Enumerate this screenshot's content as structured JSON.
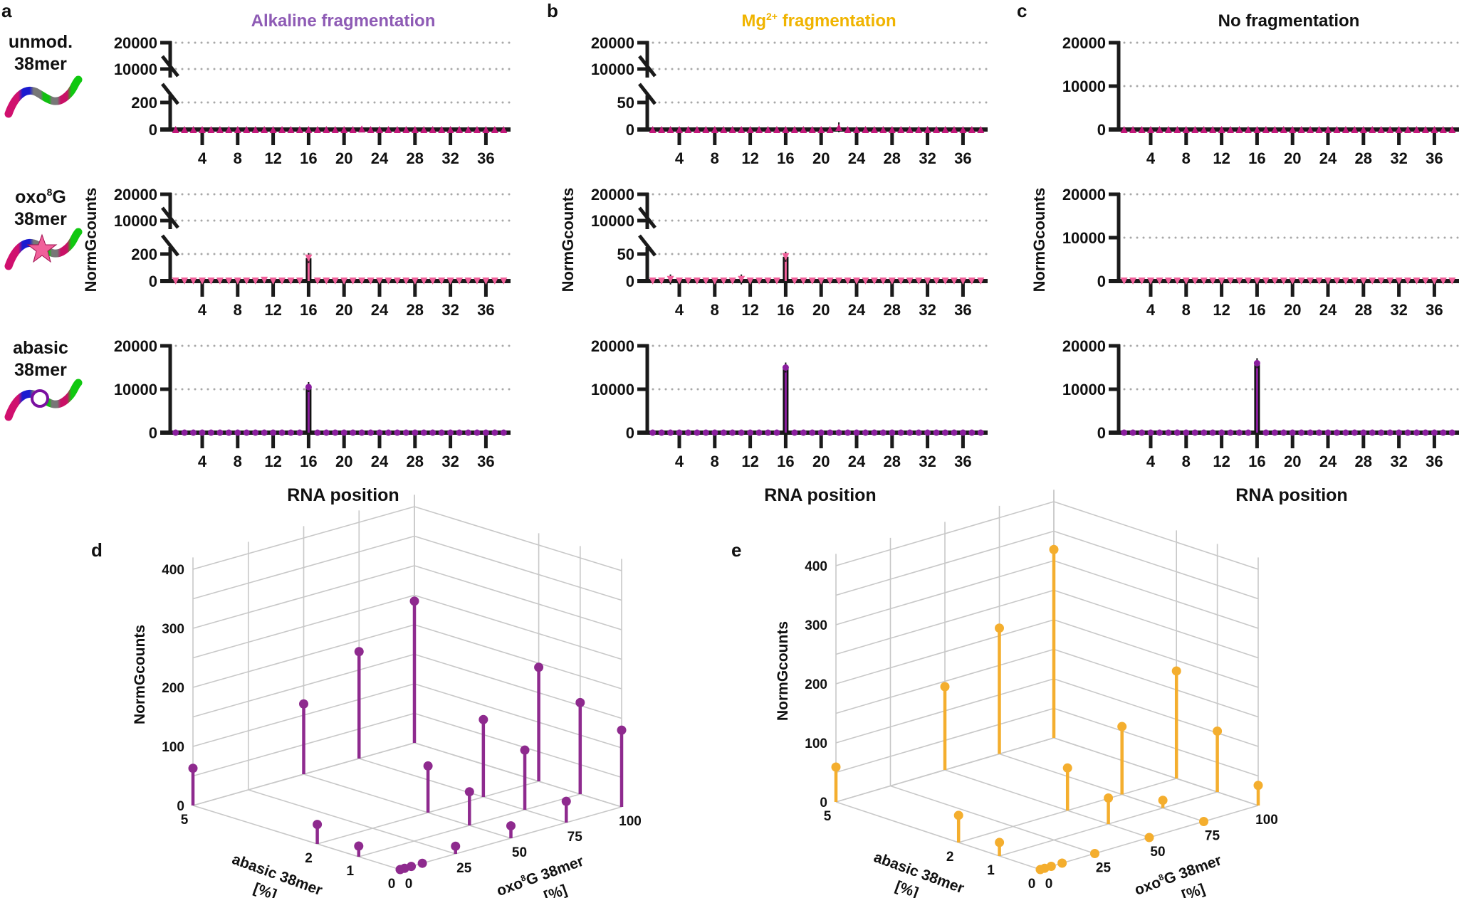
{
  "panel_labels": [
    "a",
    "b",
    "c",
    "d",
    "e"
  ],
  "panels": [
    {
      "id": "a",
      "title": "Alkaline fragmentation",
      "title_color": "#8e5bb5"
    },
    {
      "id": "b",
      "title_main": "Mg",
      "title_sup": "2+",
      "title_end": " fragmentation",
      "title_color": "#f0b400"
    },
    {
      "id": "c",
      "title": "No fragmentation",
      "title_color": "#111111"
    }
  ],
  "rows": [
    {
      "line1": "unmod.",
      "line2": "38mer",
      "icon": "rna-unmodified-icon"
    },
    {
      "line1_main": "oxo",
      "line1_sup": "8",
      "line1_end": "G",
      "line2": "38mer",
      "icon": "rna-oxo8g-star-icon"
    },
    {
      "line1": "abasic",
      "line2": "38mer",
      "icon": "rna-abasic-circle-icon"
    }
  ],
  "colors": {
    "unmod_marker": "#c2187a",
    "oxo8g_marker": "#f0609a",
    "abasic_marker": "#8a1e9e",
    "panel_d": "#8e2a8e",
    "panel_e": "#f4ae2e",
    "grid": "#c8c8c8"
  },
  "chart_data": [
    {
      "type": "bar",
      "panel": "a",
      "row": 0,
      "n_positions": 38,
      "x_ticks": [
        "4",
        "8",
        "12",
        "16",
        "20",
        "24",
        "28",
        "32",
        "36"
      ],
      "y_axis": {
        "broken": true,
        "lower_max": 200,
        "tick_labels": [
          "0",
          "200",
          "10000",
          "20000"
        ]
      },
      "values": {
        "22": 4
      },
      "marker": "triangle-up",
      "marker_color": "#c2187a"
    },
    {
      "type": "bar",
      "panel": "a",
      "row": 1,
      "n_positions": 38,
      "x_ticks": [
        "4",
        "8",
        "12",
        "16",
        "20",
        "24",
        "28",
        "32",
        "36"
      ],
      "ylabel": "NormGcounts",
      "y_axis": {
        "broken": true,
        "lower_max": 200,
        "tick_labels": [
          "0",
          "200",
          "10000",
          "20000"
        ]
      },
      "values": {
        "11": 6,
        "16": 170
      },
      "marker": "triangle-down",
      "marker_color": "#f0609a"
    },
    {
      "type": "bar",
      "panel": "a",
      "row": 2,
      "n_positions": 38,
      "x_ticks": [
        "4",
        "8",
        "12",
        "16",
        "20",
        "24",
        "28",
        "32",
        "36"
      ],
      "xlabel": "RNA position",
      "y_axis": {
        "broken": false,
        "tick_labels": [
          "0",
          "10000",
          "20000"
        ]
      },
      "values": {
        "16": 10500
      },
      "marker": "circle",
      "marker_color": "#8a1e9e"
    },
    {
      "type": "bar",
      "panel": "b",
      "row": 0,
      "n_positions": 38,
      "x_ticks": [
        "4",
        "8",
        "12",
        "16",
        "20",
        "24",
        "28",
        "32",
        "36"
      ],
      "y_axis": {
        "broken": true,
        "lower_max": 50,
        "tick_labels": [
          "0",
          "50",
          "10000",
          "20000"
        ]
      },
      "values": {
        "22": 4
      },
      "marker": "triangle-up",
      "marker_color": "#c2187a"
    },
    {
      "type": "bar",
      "panel": "b",
      "row": 1,
      "n_positions": 38,
      "x_ticks": [
        "4",
        "8",
        "12",
        "16",
        "20",
        "24",
        "28",
        "32",
        "36"
      ],
      "ylabel": "NormGcounts",
      "y_axis": {
        "broken": true,
        "lower_max": 50,
        "tick_labels": [
          "0",
          "50",
          "10000",
          "20000"
        ]
      },
      "values": {
        "3": 3,
        "11": 3,
        "16": 45
      },
      "marker": "triangle-down",
      "marker_color": "#f0609a"
    },
    {
      "type": "bar",
      "panel": "b",
      "row": 2,
      "n_positions": 38,
      "x_ticks": [
        "4",
        "8",
        "12",
        "16",
        "20",
        "24",
        "28",
        "32",
        "36"
      ],
      "xlabel": "RNA position",
      "y_axis": {
        "broken": false,
        "tick_labels": [
          "0",
          "10000",
          "20000"
        ]
      },
      "values": {
        "16": 15000
      },
      "marker": "circle",
      "marker_color": "#8a1e9e"
    },
    {
      "type": "bar",
      "panel": "c",
      "row": 0,
      "n_positions": 38,
      "x_ticks": [
        "4",
        "8",
        "12",
        "16",
        "20",
        "24",
        "28",
        "32",
        "36"
      ],
      "y_axis": {
        "broken": false,
        "tick_labels": [
          "0",
          "10000",
          "20000"
        ]
      },
      "values": {},
      "marker": "triangle-up",
      "marker_color": "#c2187a"
    },
    {
      "type": "bar",
      "panel": "c",
      "row": 1,
      "n_positions": 38,
      "x_ticks": [
        "4",
        "8",
        "12",
        "16",
        "20",
        "24",
        "28",
        "32",
        "36"
      ],
      "ylabel": "NormGcounts",
      "y_axis": {
        "broken": false,
        "tick_labels": [
          "0",
          "10000",
          "20000"
        ]
      },
      "values": {},
      "marker": "triangle-down",
      "marker_color": "#f0609a"
    },
    {
      "type": "bar",
      "panel": "c",
      "row": 2,
      "n_positions": 38,
      "x_ticks": [
        "4",
        "8",
        "12",
        "16",
        "20",
        "24",
        "28",
        "32",
        "36"
      ],
      "xlabel": "RNA position",
      "y_axis": {
        "broken": false,
        "tick_labels": [
          "0",
          "10000",
          "20000"
        ]
      },
      "values": {
        "16": 16000
      },
      "marker": "circle",
      "marker_color": "#8a1e9e"
    },
    {
      "type": "scatter3d",
      "panel": "d",
      "zlabel": "NormGcounts",
      "xlabel_main": "abasic 38mer",
      "xlabel_unit": "[%]",
      "ylabel_main": "oxo",
      "ylabel_sup": "8",
      "ylabel_end": "G 38mer",
      "ylabel_unit": "[%]",
      "x_ticks": [
        "0",
        "1",
        "2",
        "5"
      ],
      "y_ticks": [
        "0",
        "25",
        "50",
        "75",
        "100"
      ],
      "z_ticks": [
        "0",
        "100",
        "200",
        "300",
        "400"
      ],
      "zlim": [
        0,
        400
      ],
      "color": "#8e2a8e",
      "points": [
        {
          "abasic": 5,
          "oxo8g": 0,
          "value": 63
        },
        {
          "abasic": 5,
          "oxo8g": 50,
          "value": 119
        },
        {
          "abasic": 5,
          "oxo8g": 75,
          "value": 181
        },
        {
          "abasic": 5,
          "oxo8g": 100,
          "value": 240
        },
        {
          "abasic": 2,
          "oxo8g": 0,
          "value": 33
        },
        {
          "abasic": 1,
          "oxo8g": 0,
          "value": 18
        },
        {
          "abasic": 0,
          "oxo8g": 0,
          "value": 0
        },
        {
          "abasic": 0,
          "oxo8g": 2,
          "value": 0
        },
        {
          "abasic": 0,
          "oxo8g": 5,
          "value": 0
        },
        {
          "abasic": 0,
          "oxo8g": 10,
          "value": 0
        },
        {
          "abasic": 0,
          "oxo8g": 25,
          "value": 13
        },
        {
          "abasic": 0,
          "oxo8g": 50,
          "value": 21
        },
        {
          "abasic": 0,
          "oxo8g": 75,
          "value": 36
        },
        {
          "abasic": 0,
          "oxo8g": 100,
          "value": 130
        },
        {
          "abasic": 2,
          "oxo8g": 50,
          "value": 79
        },
        {
          "abasic": 1,
          "oxo8g": 50,
          "value": 57
        },
        {
          "abasic": 2,
          "oxo8g": 75,
          "value": 131
        },
        {
          "abasic": 2,
          "oxo8g": 100,
          "value": 193
        },
        {
          "abasic": 1,
          "oxo8g": 75,
          "value": 101
        },
        {
          "abasic": 1,
          "oxo8g": 100,
          "value": 155
        }
      ]
    },
    {
      "type": "scatter3d",
      "panel": "e",
      "zlabel": "NormGcounts",
      "xlabel_main": "abasic 38mer",
      "xlabel_unit": "[%]",
      "ylabel_main": "oxo",
      "ylabel_sup": "8",
      "ylabel_end": "G 38mer",
      "ylabel_unit": "[%]",
      "x_ticks": [
        "0",
        "1",
        "2",
        "5"
      ],
      "y_ticks": [
        "0",
        "25",
        "50",
        "75",
        "100"
      ],
      "z_ticks": [
        "0",
        "100",
        "200",
        "300",
        "400"
      ],
      "zlim": [
        0,
        400
      ],
      "color": "#f4ae2e",
      "points": [
        {
          "abasic": 5,
          "oxo8g": 0,
          "value": 59
        },
        {
          "abasic": 5,
          "oxo8g": 50,
          "value": 141
        },
        {
          "abasic": 5,
          "oxo8g": 75,
          "value": 213
        },
        {
          "abasic": 5,
          "oxo8g": 100,
          "value": 319
        },
        {
          "abasic": 2,
          "oxo8g": 0,
          "value": 46
        },
        {
          "abasic": 1,
          "oxo8g": 0,
          "value": 23
        },
        {
          "abasic": 0,
          "oxo8g": 0,
          "value": 0
        },
        {
          "abasic": 0,
          "oxo8g": 2,
          "value": 0
        },
        {
          "abasic": 0,
          "oxo8g": 5,
          "value": 0
        },
        {
          "abasic": 0,
          "oxo8g": 10,
          "value": 0
        },
        {
          "abasic": 0,
          "oxo8g": 25,
          "value": 0
        },
        {
          "abasic": 0,
          "oxo8g": 50,
          "value": 0
        },
        {
          "abasic": 0,
          "oxo8g": 75,
          "value": 0
        },
        {
          "abasic": 0,
          "oxo8g": 100,
          "value": 34
        },
        {
          "abasic": 2,
          "oxo8g": 50,
          "value": 72
        },
        {
          "abasic": 1,
          "oxo8g": 50,
          "value": 44
        },
        {
          "abasic": 2,
          "oxo8g": 75,
          "value": 115
        },
        {
          "abasic": 2,
          "oxo8g": 100,
          "value": 182
        },
        {
          "abasic": 1,
          "oxo8g": 75,
          "value": 13
        },
        {
          "abasic": 1,
          "oxo8g": 100,
          "value": 103
        }
      ]
    }
  ]
}
